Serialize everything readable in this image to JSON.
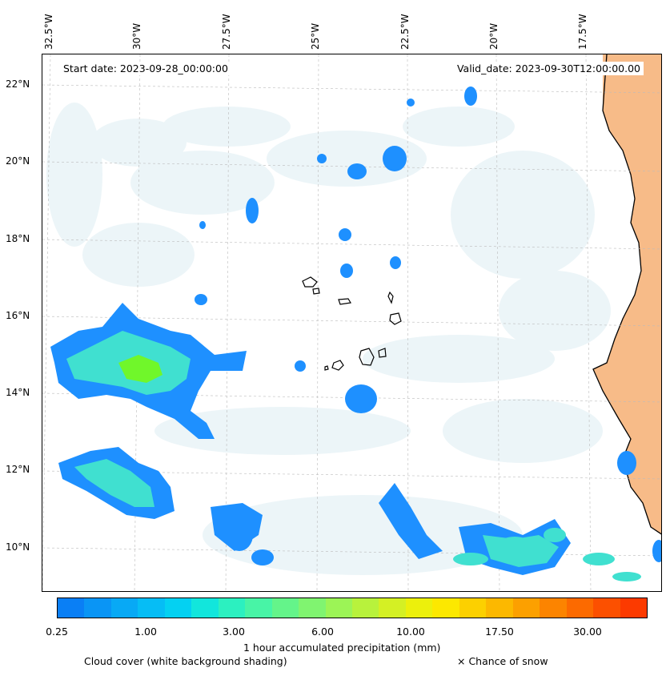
{
  "header": {
    "start_date": "Start date: 2023-09-28_00:00:00",
    "valid_date": "Valid_date: 2023-09-30T12:00:00.00"
  },
  "axes": {
    "lon_labels": [
      "32.5°W",
      "30°W",
      "27.5°W",
      "25°W",
      "22.5°W",
      "20°W",
      "17.5°W"
    ],
    "lat_labels": [
      "22°N",
      "20°N",
      "18°N",
      "16°N",
      "14°N",
      "12°N",
      "10°N"
    ]
  },
  "colorbar": {
    "title": "1 hour accumulated precipitation (mm)",
    "tick_labels": [
      "0.25",
      "1.00",
      "3.00",
      "6.00",
      "10.00",
      "17.50",
      "30.00"
    ],
    "colors": [
      "#0a7ff5",
      "#0a95f5",
      "#08a9f5",
      "#06bdf5",
      "#04d1f2",
      "#12e6dc",
      "#2cf0c0",
      "#48f4a6",
      "#64f48a",
      "#80f470",
      "#9cf456",
      "#b8f23c",
      "#d4f024",
      "#ecf00c",
      "#fce800",
      "#fcd000",
      "#fcb800",
      "#fca000",
      "#fc8400",
      "#fc6a00",
      "#fc5000",
      "#fc3a00"
    ]
  },
  "legend": {
    "cloud_cover": "Cloud cover (white background shading)",
    "snow": "× Chance of snow"
  },
  "map": {
    "precip_light_color": "#1e90ff",
    "precip_mid_color": "#40e0d0",
    "precip_high_color": "#7cfc00",
    "land_color": "#f4a460",
    "cloud_color": "#e6f2f6",
    "grid_style": "dashed-gray"
  }
}
